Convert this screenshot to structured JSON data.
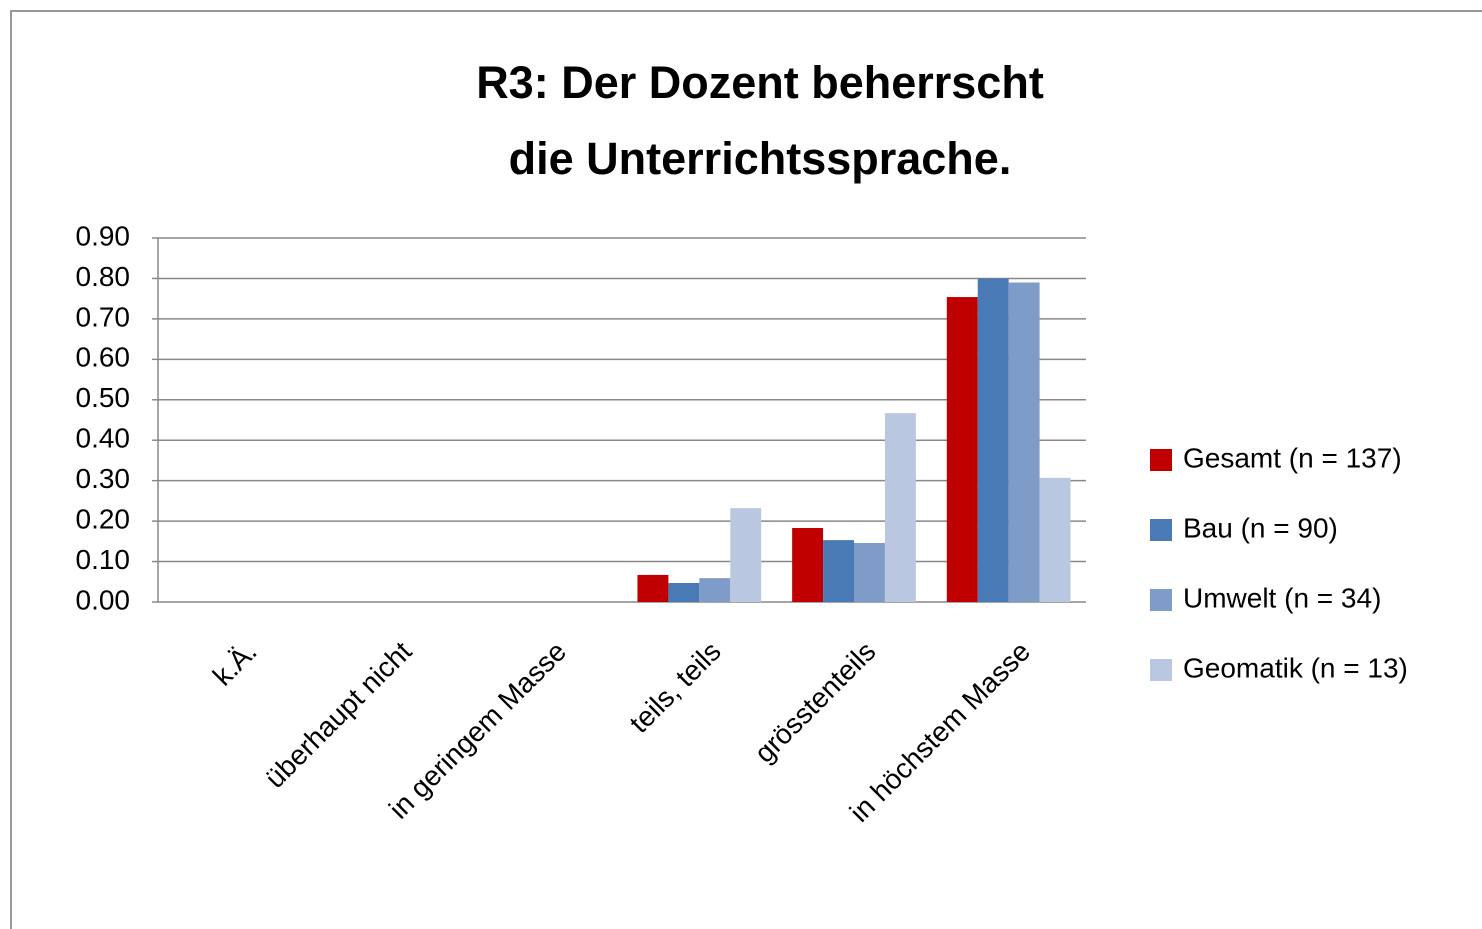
{
  "chart_data": {
    "type": "bar",
    "title": "R3: Der Dozent beherrscht die Unterrichtssprache.",
    "categories": [
      "k.Ä.",
      "überhaupt nicht",
      "in geringem Masse",
      "teils, teils",
      "grösstenteils",
      "in höchstem Masse"
    ],
    "series": [
      {
        "name": "Gesamt (n = 137)",
        "color": "#c00000",
        "values": [
          0,
          0,
          0,
          0.067,
          0.183,
          0.754
        ]
      },
      {
        "name": "Bau (n = 90)",
        "color": "#4a7ab5",
        "values": [
          0,
          0,
          0,
          0.047,
          0.153,
          0.8
        ]
      },
      {
        "name": "Umwelt (n = 34)",
        "color": "#7f9cc9",
        "values": [
          0,
          0,
          0,
          0.059,
          0.146,
          0.79
        ]
      },
      {
        "name": "Geomatik (n = 13)",
        "color": "#b9c7e0",
        "values": [
          0,
          0,
          0,
          0.232,
          0.467,
          0.307
        ]
      }
    ],
    "ylim": [
      0,
      0.9
    ],
    "yticks": [
      {
        "value": 0,
        "label": "0.00"
      },
      {
        "value": 0.1,
        "label": "0.10"
      },
      {
        "value": 0.2,
        "label": "0.20"
      },
      {
        "value": 0.3,
        "label": "0.30"
      },
      {
        "value": 0.4,
        "label": "0.40"
      },
      {
        "value": 0.5,
        "label": "0.50"
      },
      {
        "value": 0.6,
        "label": "0.60"
      },
      {
        "value": 0.7,
        "label": "0.70"
      },
      {
        "value": 0.8,
        "label": "0.80"
      },
      {
        "value": 0.9,
        "label": "0.90"
      }
    ],
    "grid": true,
    "legend": "right"
  }
}
